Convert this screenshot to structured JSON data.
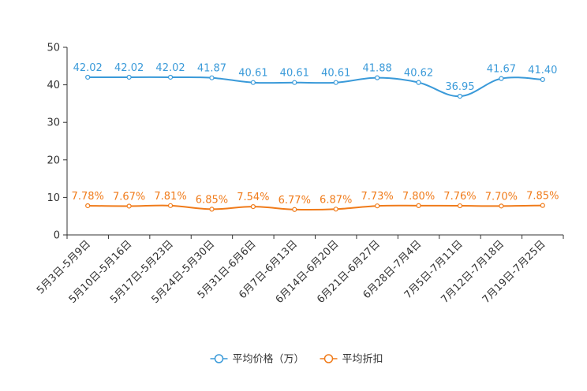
{
  "chart_data": {
    "type": "line",
    "title": "",
    "xlabel": "",
    "ylabel": "",
    "ylim": [
      0,
      50
    ],
    "yticks": [
      0,
      10,
      20,
      30,
      40,
      50
    ],
    "categories": [
      "5月3日-5月9日",
      "5月10日-5月16日",
      "5月17日-5月23日",
      "5月24日-5月30日",
      "5月31日-6月6日",
      "6月7日-6月13日",
      "6月14日-6月20日",
      "6月21日-6月27日",
      "6月28日-7月4日",
      "7月5日-7月11日",
      "7月12日-7月18日",
      "7月19日-7月25日"
    ],
    "series": [
      {
        "name": "平均价格（万）",
        "color": "#3a9ad9",
        "values": [
          42.02,
          42.02,
          42.02,
          41.87,
          40.61,
          40.61,
          40.61,
          41.88,
          40.62,
          36.95,
          41.67,
          41.4
        ],
        "labels": [
          "42.02",
          "42.02",
          "42.02",
          "41.87",
          "40.61",
          "40.61",
          "40.61",
          "41.88",
          "40.62",
          "36.95",
          "41.67",
          "41.40"
        ]
      },
      {
        "name": "平均折扣",
        "color": "#f07b1a",
        "values": [
          7.78,
          7.67,
          7.81,
          6.85,
          7.54,
          6.77,
          6.87,
          7.73,
          7.8,
          7.76,
          7.7,
          7.85
        ],
        "labels": [
          "7.78%",
          "7.67%",
          "7.81%",
          "6.85%",
          "7.54%",
          "6.77%",
          "6.87%",
          "7.73%",
          "7.80%",
          "7.76%",
          "7.70%",
          "7.85%"
        ]
      }
    ],
    "legend_position": "bottom-center",
    "grid": false
  }
}
